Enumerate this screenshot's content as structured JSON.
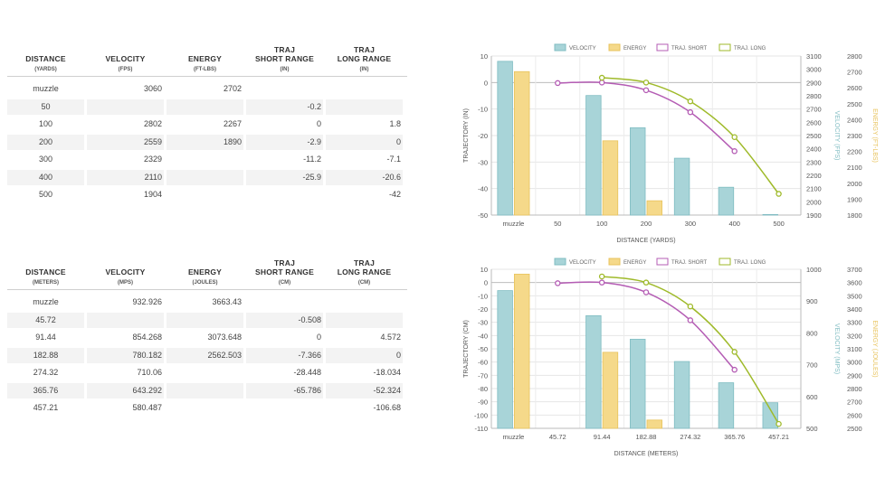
{
  "tables": [
    {
      "headers": [
        {
          "line1": "DISTANCE",
          "line2": "(YARDS)"
        },
        {
          "line1": "VELOCITY",
          "line2": "(FPS)"
        },
        {
          "line1": "ENERGY",
          "line2": "(FT-LBS)"
        },
        {
          "line1": "TRAJ",
          "line1b": "SHORT RANGE",
          "line2": "(IN)"
        },
        {
          "line1": "TRAJ",
          "line1b": "LONG RANGE",
          "line2": "(IN)"
        }
      ],
      "rows": [
        [
          "muzzle",
          "3060",
          "2702",
          "",
          ""
        ],
        [
          "50",
          "",
          "",
          "-0.2",
          ""
        ],
        [
          "100",
          "2802",
          "2267",
          "0",
          "1.8"
        ],
        [
          "200",
          "2559",
          "1890",
          "-2.9",
          "0"
        ],
        [
          "300",
          "2329",
          "",
          "-11.2",
          "-7.1"
        ],
        [
          "400",
          "2110",
          "",
          "-25.9",
          "-20.6"
        ],
        [
          "500",
          "1904",
          "",
          "",
          "-42"
        ]
      ]
    },
    {
      "headers": [
        {
          "line1": "DISTANCE",
          "line2": "(METERS)"
        },
        {
          "line1": "VELOCITY",
          "line2": "(MPS)"
        },
        {
          "line1": "ENERGY",
          "line2": "(JOULES)"
        },
        {
          "line1": "TRAJ",
          "line1b": "SHORT RANGE",
          "line2": "(CM)"
        },
        {
          "line1": "TRAJ",
          "line1b": "LONG RANGE",
          "line2": "(CM)"
        }
      ],
      "rows": [
        [
          "muzzle",
          "932.926",
          "3663.43",
          "",
          ""
        ],
        [
          "45.72",
          "",
          "",
          "-0.508",
          ""
        ],
        [
          "91.44",
          "854.268",
          "3073.648",
          "0",
          "4.572"
        ],
        [
          "182.88",
          "780.182",
          "2562.503",
          "-7.366",
          "0"
        ],
        [
          "274.32",
          "710.06",
          "",
          "-28.448",
          "-18.034"
        ],
        [
          "365.76",
          "643.292",
          "",
          "-65.786",
          "-52.324"
        ],
        [
          "457.21",
          "580.487",
          "",
          "",
          "-106.68"
        ]
      ]
    }
  ],
  "colors": {
    "velocity": "#a8d4d8",
    "velocity_stroke": "#7fbcc2",
    "energy": "#f5d98a",
    "energy_stroke": "#e8c35c",
    "short": "#b45cb4",
    "long": "#9fba2a",
    "axis_text": "#555555",
    "vel_axis_label": "#7fbcc2",
    "en_axis_label": "#e8c35c"
  },
  "chart_data": [
    {
      "type": "bar",
      "legend": [
        "VELOCITY",
        "ENERGY",
        "TRAJ. SHORT",
        "TRAJ. LONG"
      ],
      "categories": [
        "muzzle",
        "50",
        "100",
        "200",
        "300",
        "400",
        "500"
      ],
      "xlabel": "DISTANCE (YARDS)",
      "ylabel_left": "TRAJECTORY (IN)",
      "ylabel_right1": "VELOCITY (FPS)",
      "ylabel_right2": "ENERGY (FT-LBS)",
      "left_ticks": [
        "10",
        "0",
        "-10",
        "-20",
        "-30",
        "-40",
        "-50"
      ],
      "left_range": [
        -50,
        10
      ],
      "vel_ticks": [
        "3100",
        "3000",
        "2900",
        "2800",
        "2700",
        "2600",
        "2500",
        "2400",
        "2300",
        "2200",
        "2100",
        "2000",
        "1900"
      ],
      "vel_range": [
        1900,
        3100
      ],
      "en_ticks": [
        "2800",
        "2700",
        "2600",
        "2500",
        "2400",
        "2300",
        "2200",
        "2100",
        "2000",
        "1900",
        "1800"
      ],
      "en_range": [
        1800,
        2800
      ],
      "series": [
        {
          "name": "VELOCITY",
          "kind": "bar",
          "axis": "vel",
          "values": [
            3060,
            null,
            2802,
            2559,
            2329,
            2110,
            1904
          ]
        },
        {
          "name": "ENERGY",
          "kind": "bar",
          "axis": "en",
          "values": [
            2702,
            null,
            2267,
            1890,
            null,
            null,
            null
          ]
        },
        {
          "name": "TRAJ. SHORT",
          "kind": "line",
          "axis": "left",
          "values": [
            null,
            -0.2,
            0,
            -2.9,
            -11.2,
            -25.9,
            null
          ]
        },
        {
          "name": "TRAJ. LONG",
          "kind": "line",
          "axis": "left",
          "values": [
            null,
            null,
            1.8,
            0,
            -7.1,
            -20.6,
            -42
          ]
        }
      ]
    },
    {
      "type": "bar",
      "legend": [
        "VELOCITY",
        "ENERGY",
        "TRAJ. SHORT",
        "TRAJ. LONG"
      ],
      "categories": [
        "muzzle",
        "45.72",
        "91.44",
        "182.88",
        "274.32",
        "365.76",
        "457.21"
      ],
      "xlabel": "DISTANCE (METERS)",
      "ylabel_left": "TRAJECTORY (CM)",
      "ylabel_right1": "VELOCITY (MPS)",
      "ylabel_right2": "ENERGY (JOULES)",
      "left_ticks": [
        "10",
        "0",
        "-10",
        "-20",
        "-30",
        "-40",
        "-50",
        "-60",
        "-70",
        "-80",
        "-90",
        "-100",
        "-110"
      ],
      "left_range": [
        -110,
        10
      ],
      "vel_ticks": [
        "1000",
        "900",
        "800",
        "700",
        "600",
        "500"
      ],
      "vel_range": [
        500,
        1000
      ],
      "en_ticks": [
        "3700",
        "3600",
        "3500",
        "3400",
        "3300",
        "3200",
        "3100",
        "3000",
        "2900",
        "2800",
        "2700",
        "2600",
        "2500"
      ],
      "en_range": [
        2500,
        3700
      ],
      "series": [
        {
          "name": "VELOCITY",
          "kind": "bar",
          "axis": "vel",
          "values": [
            932.926,
            null,
            854.268,
            780.182,
            710.06,
            643.292,
            580.487
          ]
        },
        {
          "name": "ENERGY",
          "kind": "bar",
          "axis": "en",
          "values": [
            3663.43,
            null,
            3073.648,
            2562.503,
            null,
            null,
            null
          ]
        },
        {
          "name": "TRAJ. SHORT",
          "kind": "line",
          "axis": "left",
          "values": [
            null,
            -0.508,
            0,
            -7.366,
            -28.448,
            -65.786,
            null
          ]
        },
        {
          "name": "TRAJ. LONG",
          "kind": "line",
          "axis": "left",
          "values": [
            null,
            null,
            4.572,
            0,
            -18.034,
            -52.324,
            -106.68
          ]
        }
      ]
    }
  ]
}
